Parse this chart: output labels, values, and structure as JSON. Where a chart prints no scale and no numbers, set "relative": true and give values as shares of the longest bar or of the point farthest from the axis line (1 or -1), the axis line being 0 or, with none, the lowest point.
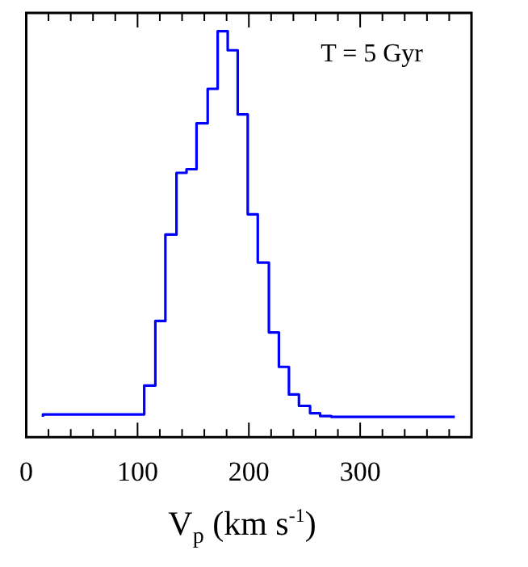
{
  "chart_data": {
    "type": "step",
    "relative": true,
    "color": "#0000ff",
    "x": [
      15,
      106,
      116,
      125,
      135,
      144,
      153,
      163,
      172,
      181,
      190,
      199,
      208,
      218,
      227,
      236,
      245,
      255,
      264,
      274,
      283,
      385
    ],
    "values": [
      0.05,
      0.056,
      0.127,
      0.286,
      0.499,
      0.651,
      0.66,
      0.773,
      0.858,
      1,
      0.953,
      0.795,
      0.549,
      0.43,
      0.258,
      0.173,
      0.105,
      0.077,
      0.059,
      0.052,
      0.05,
      0.05
    ],
    "xlim": [
      0,
      400
    ],
    "xticks": [
      0,
      {
        "value": 20,
        "label": null
      },
      {
        "value": 40,
        "label": null
      },
      {
        "value": 60,
        "label": null
      },
      {
        "value": 80,
        "label": null
      },
      100,
      {
        "value": 120,
        "label": null
      },
      {
        "value": 140,
        "label": null
      },
      {
        "value": 160,
        "label": null
      },
      {
        "value": 180,
        "label": null
      },
      200,
      {
        "value": 220,
        "label": null
      },
      {
        "value": 240,
        "label": null
      },
      {
        "value": 260,
        "label": null
      },
      {
        "value": 280,
        "label": null
      },
      300,
      {
        "value": 320,
        "label": null
      },
      {
        "value": 340,
        "label": null
      },
      {
        "value": 360,
        "label": null
      },
      {
        "value": 380,
        "label": null
      }
    ],
    "xlabel": "V$_{p}$ (km s$^{-1}$)",
    "annotations": [
      "T = 5 Gyr"
    ],
    "grid": false,
    "legend": false,
    "tick_labels": "x"
  }
}
